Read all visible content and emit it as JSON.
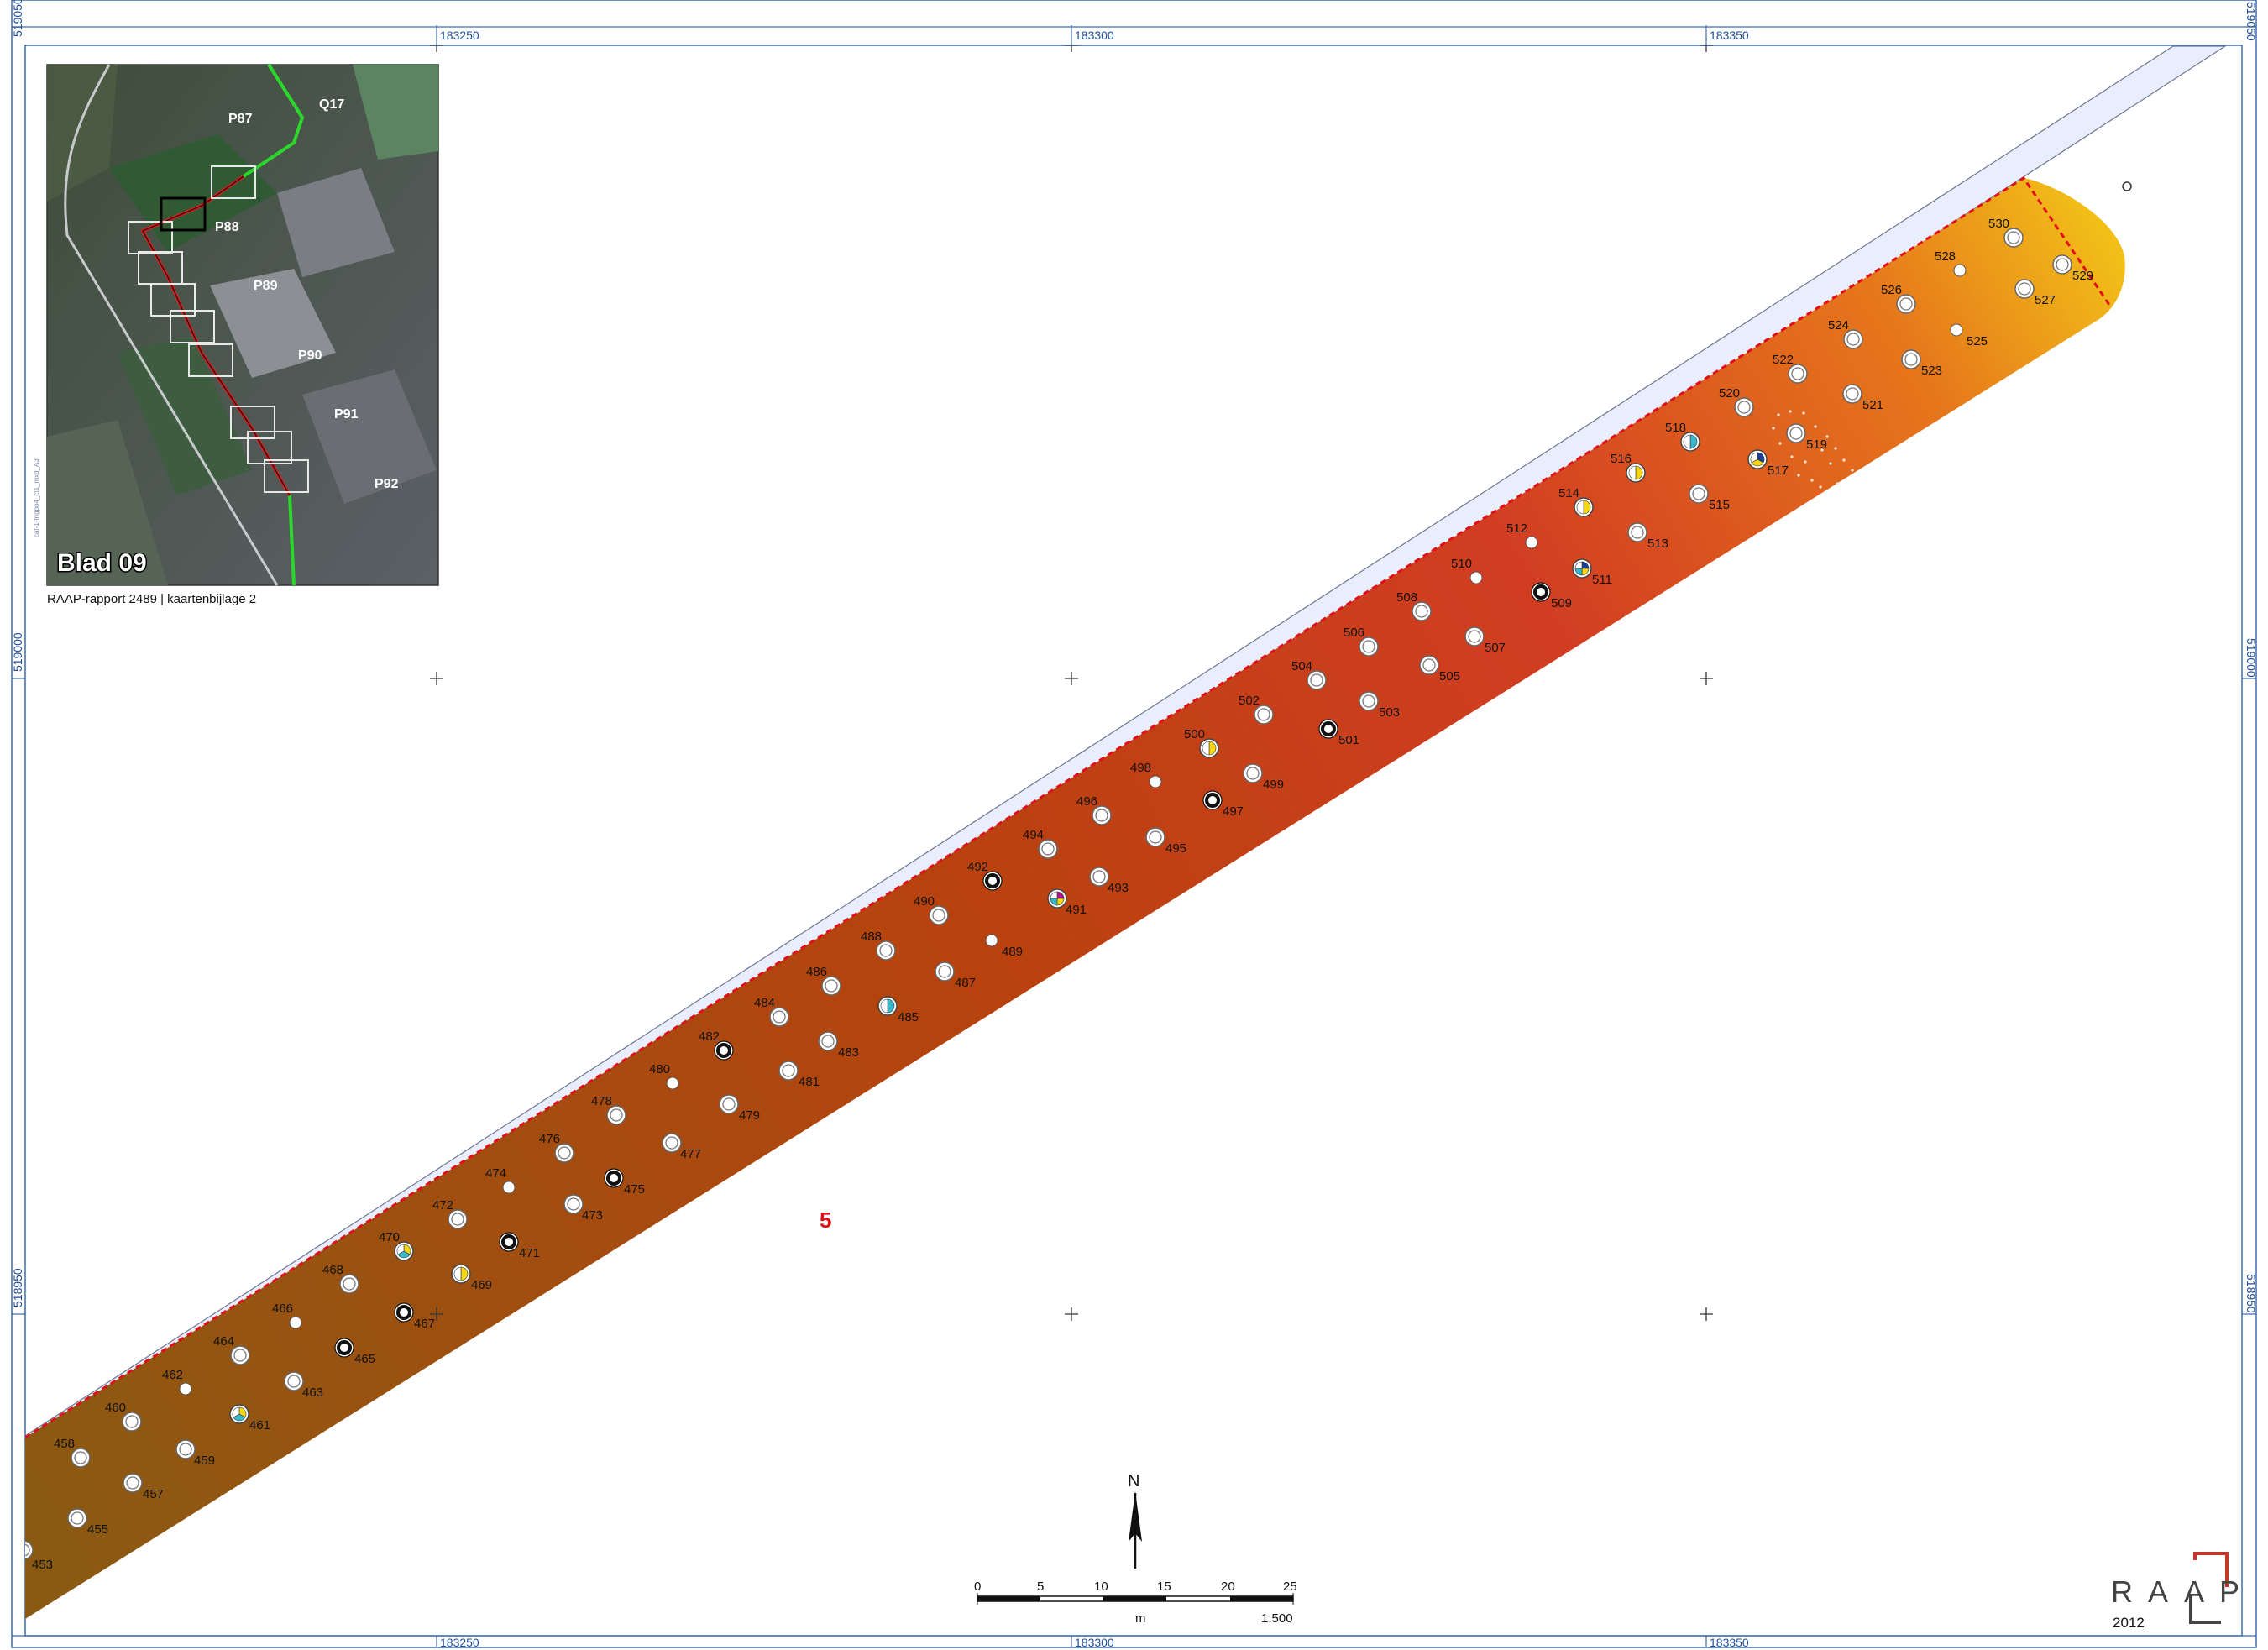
{
  "frame": {
    "coords_top": [
      "183250",
      "183300",
      "183350"
    ],
    "coords_bottom": [
      "183250",
      "183300",
      "183350"
    ],
    "coords_left": [
      "519050",
      "519000",
      "518950"
    ],
    "coords_right": [
      "519050",
      "519000",
      "518950"
    ]
  },
  "inset": {
    "parcels": [
      "Q17",
      "P87",
      "P88",
      "P89",
      "P90",
      "P91",
      "P92"
    ],
    "sheet_label": "Blad 09",
    "side_text": "cat-1-fngpo4_ct1_mxd_A3",
    "caption": "RAAP-rapport 2489 | kaartenbijlage 2"
  },
  "map": {
    "zone_label": "5",
    "zone_color": "#e0101a",
    "gradient": [
      "#8a5a12",
      "#b8420e",
      "#d23d22",
      "#e6761b",
      "#f2c318"
    ],
    "road_color": "#e8eefb",
    "boreholes": [
      {
        "id": "453",
        "type": "ring"
      },
      {
        "id": "455",
        "type": "ring"
      },
      {
        "id": "457",
        "type": "ring"
      },
      {
        "id": "458",
        "type": "ring"
      },
      {
        "id": "459",
        "type": "ring"
      },
      {
        "id": "460",
        "type": "ring"
      },
      {
        "id": "461",
        "type": "pie",
        "colors": [
          "#f5d60f",
          "#39b7cc",
          "#ffffff"
        ]
      },
      {
        "id": "462",
        "type": "dot"
      },
      {
        "id": "463",
        "type": "ring"
      },
      {
        "id": "464",
        "type": "ring"
      },
      {
        "id": "465",
        "type": "bold"
      },
      {
        "id": "466",
        "type": "dot"
      },
      {
        "id": "467",
        "type": "bold"
      },
      {
        "id": "468",
        "type": "ring"
      },
      {
        "id": "469",
        "type": "pie",
        "colors": [
          "#f5d60f",
          "#ffffff"
        ]
      },
      {
        "id": "470",
        "type": "pie",
        "colors": [
          "#f5d60f",
          "#39b7cc",
          "#ffffff"
        ]
      },
      {
        "id": "471",
        "type": "bold"
      },
      {
        "id": "472",
        "type": "ring"
      },
      {
        "id": "473",
        "type": "ring"
      },
      {
        "id": "474",
        "type": "dot"
      },
      {
        "id": "475",
        "type": "bold"
      },
      {
        "id": "476",
        "type": "ring"
      },
      {
        "id": "477",
        "type": "ring"
      },
      {
        "id": "478",
        "type": "ring"
      },
      {
        "id": "479",
        "type": "ring"
      },
      {
        "id": "480",
        "type": "dot"
      },
      {
        "id": "481",
        "type": "ring"
      },
      {
        "id": "482",
        "type": "bold"
      },
      {
        "id": "483",
        "type": "ring"
      },
      {
        "id": "484",
        "type": "ring"
      },
      {
        "id": "485",
        "type": "pie",
        "colors": [
          "#39b7cc",
          "#ffffff"
        ]
      },
      {
        "id": "486",
        "type": "ring"
      },
      {
        "id": "487",
        "type": "ring"
      },
      {
        "id": "488",
        "type": "ring"
      },
      {
        "id": "489",
        "type": "dot"
      },
      {
        "id": "490",
        "type": "ring"
      },
      {
        "id": "491",
        "type": "pie",
        "colors": [
          "#b3128d",
          "#f5d60f",
          "#39b7cc",
          "#ffffff"
        ]
      },
      {
        "id": "492",
        "type": "bold"
      },
      {
        "id": "493",
        "type": "ring"
      },
      {
        "id": "494",
        "type": "ring"
      },
      {
        "id": "495",
        "type": "ring"
      },
      {
        "id": "496",
        "type": "ring"
      },
      {
        "id": "497",
        "type": "bold"
      },
      {
        "id": "498",
        "type": "dot"
      },
      {
        "id": "499",
        "type": "ring"
      },
      {
        "id": "500",
        "type": "pie",
        "colors": [
          "#f5d60f",
          "#ffffff"
        ]
      },
      {
        "id": "501",
        "type": "bold"
      },
      {
        "id": "502",
        "type": "ring"
      },
      {
        "id": "503",
        "type": "ring"
      },
      {
        "id": "504",
        "type": "ring"
      },
      {
        "id": "505",
        "type": "ring"
      },
      {
        "id": "506",
        "type": "ring"
      },
      {
        "id": "507",
        "type": "ring"
      },
      {
        "id": "508",
        "type": "ring"
      },
      {
        "id": "509",
        "type": "bold"
      },
      {
        "id": "510",
        "type": "dot"
      },
      {
        "id": "511",
        "type": "pie",
        "colors": [
          "#1c3f9b",
          "#f5d60f",
          "#39b7cc",
          "#ffffff"
        ]
      },
      {
        "id": "512",
        "type": "dot"
      },
      {
        "id": "513",
        "type": "ring"
      },
      {
        "id": "514",
        "type": "pie",
        "colors": [
          "#f5d60f",
          "#ffffff"
        ]
      },
      {
        "id": "515",
        "type": "ring"
      },
      {
        "id": "516",
        "type": "pie",
        "colors": [
          "#f5d60f",
          "#ffffff"
        ]
      },
      {
        "id": "517",
        "type": "pie",
        "colors": [
          "#1c3f9b",
          "#f5d60f",
          "#ffffff"
        ]
      },
      {
        "id": "518",
        "type": "pie",
        "colors": [
          "#39b7cc",
          "#ffffff"
        ]
      },
      {
        "id": "519",
        "type": "ring"
      },
      {
        "id": "520",
        "type": "ring"
      },
      {
        "id": "521",
        "type": "ring"
      },
      {
        "id": "522",
        "type": "ring"
      },
      {
        "id": "523",
        "type": "ring"
      },
      {
        "id": "524",
        "type": "ring"
      },
      {
        "id": "525",
        "type": "dot"
      },
      {
        "id": "526",
        "type": "ring"
      },
      {
        "id": "527",
        "type": "ring"
      },
      {
        "id": "528",
        "type": "dot"
      },
      {
        "id": "529",
        "type": "ring"
      },
      {
        "id": "530",
        "type": "ring"
      }
    ]
  },
  "scalebar": {
    "north": "N",
    "ticks": [
      "0",
      "5",
      "10",
      "15",
      "20",
      "25"
    ],
    "unit": "m",
    "ratio": "1:500"
  },
  "logo": {
    "letters": [
      "R",
      "A",
      "A",
      "P"
    ],
    "year": "2012"
  }
}
